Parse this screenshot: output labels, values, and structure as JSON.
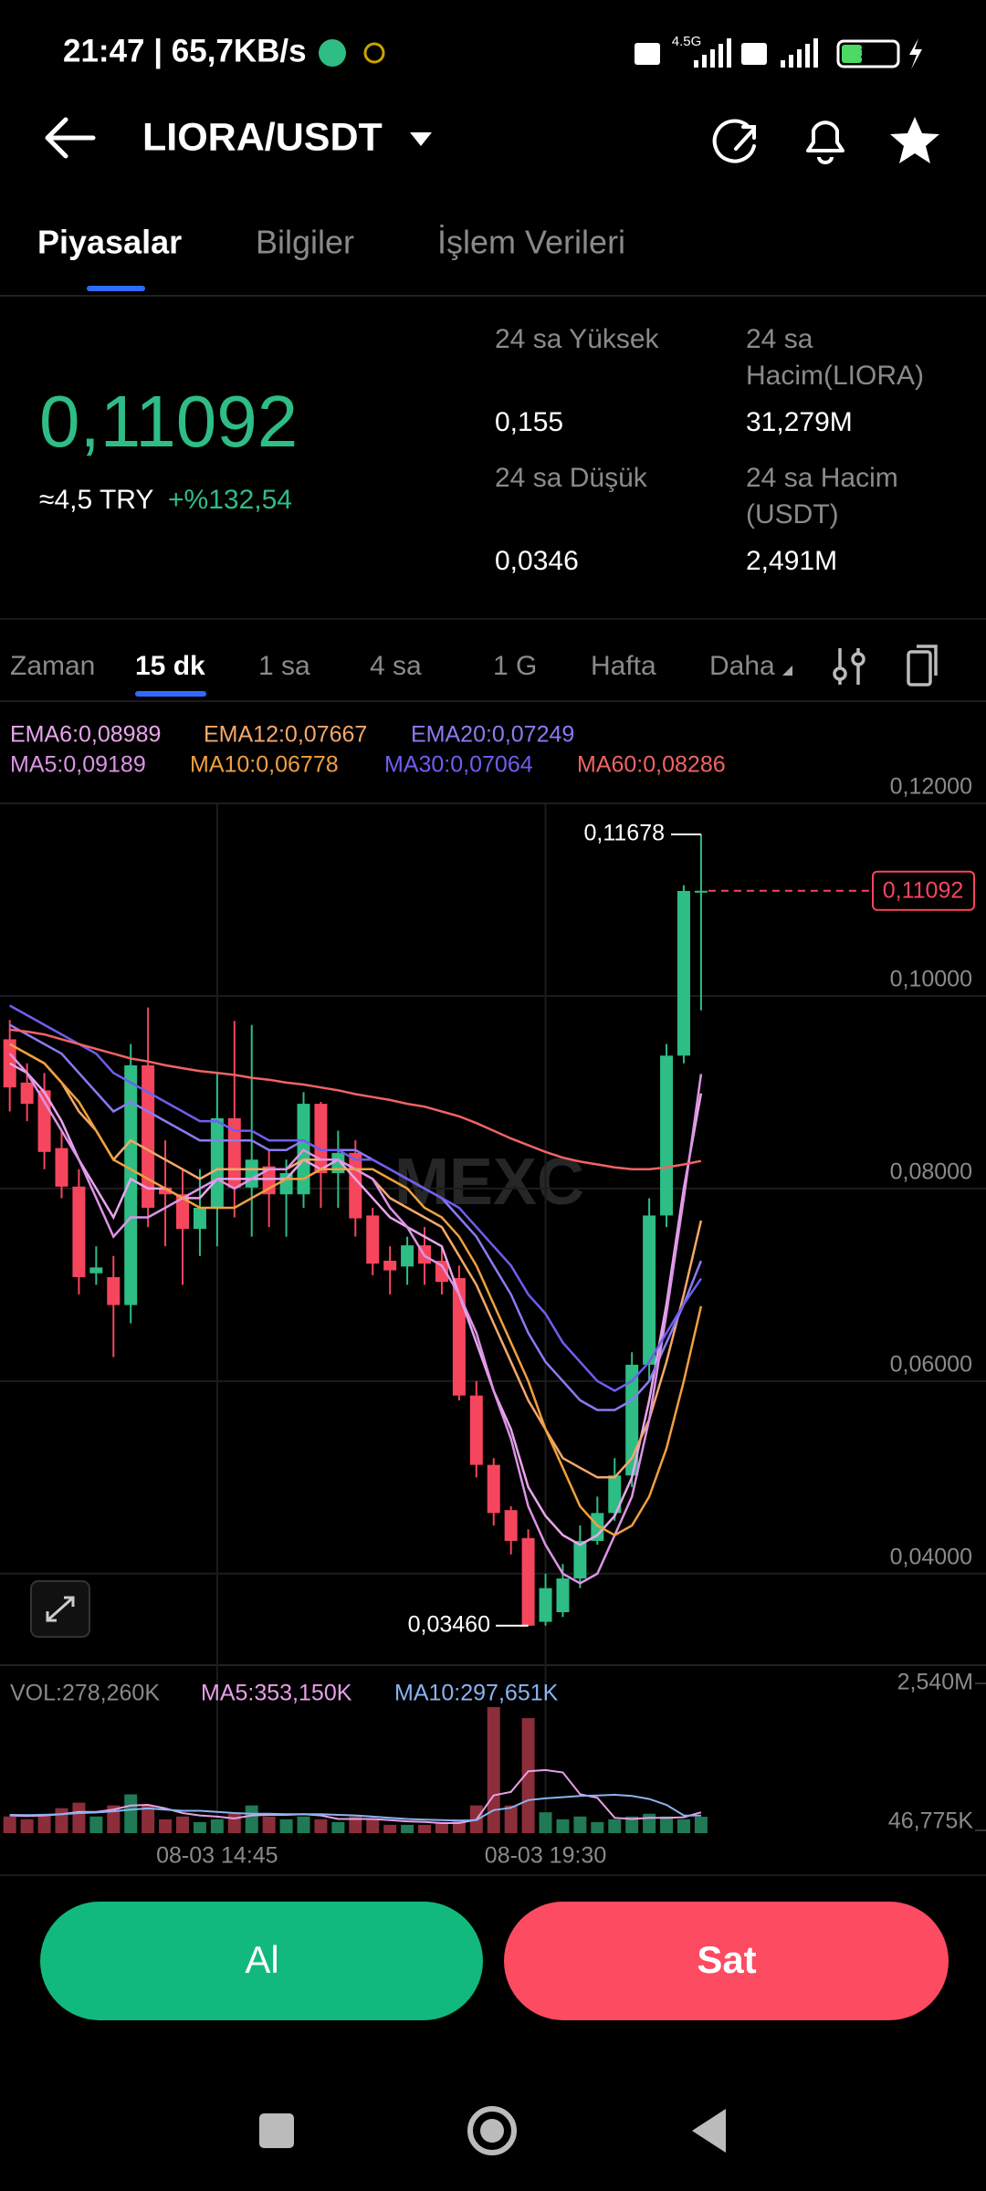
{
  "status_bar": {
    "time_speed": "21:47 | 65,7KB/s",
    "network": "4.5G",
    "battery": "38"
  },
  "header": {
    "title": "LIORA/USDT"
  },
  "tabs": [
    "Piyasalar",
    "Bilgiler",
    "İşlem Verileri"
  ],
  "ticker": {
    "price": "0,11092",
    "approx": "≈4,5 TRY",
    "change": "+%132,54",
    "stats": [
      {
        "label": [
          "24 sa Yüksek"
        ],
        "value": "0,155"
      },
      {
        "label": [
          "24 sa",
          "Hacim(LIORA)"
        ],
        "value": "31,279M"
      },
      {
        "label": [
          "24 sa Düşük"
        ],
        "value": "0,0346"
      },
      {
        "label": [
          "24 sa Hacim",
          "(USDT)"
        ],
        "value": "2,491M"
      }
    ]
  },
  "intervals": [
    "Zaman",
    "15 dk",
    "1 sa",
    "4 sa",
    "1 G",
    "Hafta",
    "Daha"
  ],
  "chart_data": [
    {
      "type": "candlestick",
      "watermark": "MEXC",
      "up_color": "#2ebd85",
      "down_color": "#f6465d",
      "categories": [
        null,
        null,
        null,
        null,
        null,
        null,
        null,
        null,
        null,
        null,
        null,
        null,
        "08-03 14:45",
        null,
        null,
        null,
        null,
        null,
        null,
        null,
        null,
        null,
        null,
        null,
        null,
        null,
        null,
        null,
        null,
        null,
        null,
        "08-03 19:30",
        null,
        null,
        null,
        null,
        null,
        null,
        null,
        null,
        null
      ],
      "open": [
        0.0955,
        0.091,
        0.0902,
        0.0842,
        0.0802,
        0.0712,
        0.0708,
        0.0679,
        0.0928,
        0.0801,
        0.0794,
        0.0758,
        0.078,
        0.0873,
        0.0801,
        0.0823,
        0.0794,
        0.0794,
        0.0888,
        0.0816,
        0.0837,
        0.0772,
        0.0725,
        0.0719,
        0.0741,
        0.0725,
        0.0707,
        0.0585,
        0.0513,
        0.0466,
        0.0437,
        0.035,
        0.036,
        0.0395,
        0.0434,
        0.0463,
        0.0502,
        0.0617,
        0.0772,
        0.0938,
        0.1109
      ],
      "high": [
        0.0975,
        0.093,
        0.092,
        0.086,
        0.082,
        0.074,
        0.073,
        0.095,
        0.0988,
        0.085,
        0.082,
        0.082,
        0.092,
        0.0974,
        0.097,
        0.084,
        0.083,
        0.09,
        0.089,
        0.086,
        0.085,
        0.078,
        0.074,
        0.075,
        0.076,
        0.074,
        0.072,
        0.06,
        0.052,
        0.047,
        0.0446,
        0.04,
        0.041,
        0.045,
        0.048,
        0.052,
        0.063,
        0.079,
        0.095,
        0.1115,
        0.11678
      ],
      "low": [
        0.088,
        0.087,
        0.082,
        0.079,
        0.069,
        0.07,
        0.0625,
        0.066,
        0.076,
        0.074,
        0.07,
        0.073,
        0.074,
        0.077,
        0.075,
        0.076,
        0.075,
        0.078,
        0.078,
        0.078,
        0.075,
        0.071,
        0.069,
        0.07,
        0.07,
        0.069,
        0.058,
        0.05,
        0.045,
        0.042,
        0.0346,
        0.0346,
        0.0355,
        0.0385,
        0.043,
        0.0455,
        0.049,
        0.06,
        0.076,
        0.093,
        0.0985
      ],
      "close": [
        0.0905,
        0.0888,
        0.0838,
        0.0802,
        0.0708,
        0.0718,
        0.0679,
        0.0928,
        0.078,
        0.0794,
        0.0758,
        0.078,
        0.0873,
        0.0801,
        0.083,
        0.0794,
        0.0816,
        0.0888,
        0.0816,
        0.0837,
        0.0769,
        0.0722,
        0.0715,
        0.0741,
        0.0722,
        0.0703,
        0.0585,
        0.0513,
        0.0463,
        0.0434,
        0.0346,
        0.0385,
        0.0395,
        0.0434,
        0.0463,
        0.0502,
        0.0617,
        0.0772,
        0.0938,
        0.1109,
        0.11092
      ],
      "series": [
        {
          "name": "EMA6:0,08989",
          "color": "#e8a6ec",
          "values": [
            0.093,
            0.092,
            0.09,
            0.087,
            0.083,
            0.08,
            0.077,
            0.081,
            0.08,
            0.08,
            0.079,
            0.079,
            0.081,
            0.081,
            0.081,
            0.081,
            0.081,
            0.083,
            0.082,
            0.083,
            0.081,
            0.079,
            0.077,
            0.076,
            0.075,
            0.074,
            0.069,
            0.064,
            0.059,
            0.055,
            0.049,
            0.046,
            0.044,
            0.043,
            0.044,
            0.046,
            0.05,
            0.058,
            0.068,
            0.08,
            0.08989
          ]
        },
        {
          "name": "EMA12:0,07667",
          "color": "#f5a86a",
          "values": [
            0.095,
            0.094,
            0.093,
            0.091,
            0.088,
            0.086,
            0.083,
            0.085,
            0.084,
            0.083,
            0.082,
            0.081,
            0.082,
            0.082,
            0.082,
            0.082,
            0.082,
            0.083,
            0.083,
            0.083,
            0.082,
            0.081,
            0.079,
            0.078,
            0.077,
            0.076,
            0.073,
            0.07,
            0.066,
            0.062,
            0.058,
            0.055,
            0.052,
            0.051,
            0.05,
            0.05,
            0.052,
            0.056,
            0.062,
            0.069,
            0.07667
          ]
        },
        {
          "name": "EMA20:0,07249",
          "color": "#8a7cf2",
          "values": [
            0.097,
            0.096,
            0.095,
            0.094,
            0.092,
            0.09,
            0.088,
            0.089,
            0.088,
            0.087,
            0.086,
            0.085,
            0.085,
            0.085,
            0.085,
            0.084,
            0.084,
            0.085,
            0.084,
            0.084,
            0.084,
            0.083,
            0.082,
            0.081,
            0.08,
            0.079,
            0.077,
            0.075,
            0.072,
            0.069,
            0.065,
            0.062,
            0.06,
            0.058,
            0.057,
            0.057,
            0.058,
            0.06,
            0.064,
            0.068,
            0.07249
          ]
        },
        {
          "name": "MA5:0,09189",
          "color": "#dc94e6",
          "values": [
            0.094,
            0.092,
            0.089,
            0.086,
            0.083,
            0.079,
            0.075,
            0.077,
            0.077,
            0.078,
            0.079,
            0.08,
            0.081,
            0.08,
            0.081,
            0.082,
            0.082,
            0.084,
            0.083,
            0.083,
            0.082,
            0.081,
            0.078,
            0.076,
            0.073,
            0.072,
            0.069,
            0.065,
            0.059,
            0.054,
            0.047,
            0.043,
            0.04,
            0.039,
            0.04,
            0.044,
            0.048,
            0.056,
            0.067,
            0.079,
            0.09189
          ]
        },
        {
          "name": "MA10:0,06778",
          "color": "#f0a040",
          "values": [
            0.095,
            0.094,
            0.093,
            0.091,
            0.089,
            0.086,
            0.083,
            0.082,
            0.081,
            0.08,
            0.079,
            0.078,
            0.078,
            0.078,
            0.079,
            0.08,
            0.081,
            0.081,
            0.082,
            0.082,
            0.082,
            0.082,
            0.081,
            0.08,
            0.078,
            0.077,
            0.075,
            0.072,
            0.068,
            0.064,
            0.06,
            0.055,
            0.051,
            0.047,
            0.045,
            0.044,
            0.045,
            0.048,
            0.053,
            0.06,
            0.06778
          ]
        },
        {
          "name": "MA30:0,07064",
          "color": "#6e5ef0",
          "values": [
            0.099,
            0.098,
            0.097,
            0.096,
            0.095,
            0.094,
            0.092,
            0.091,
            0.09,
            0.089,
            0.088,
            0.087,
            0.087,
            0.086,
            0.086,
            0.085,
            0.085,
            0.085,
            0.084,
            0.084,
            0.083,
            0.083,
            0.082,
            0.081,
            0.08,
            0.079,
            0.078,
            0.076,
            0.074,
            0.072,
            0.069,
            0.067,
            0.064,
            0.062,
            0.06,
            0.059,
            0.06,
            0.062,
            0.065,
            0.068,
            0.07064
          ]
        },
        {
          "name": "MA60:0,08286",
          "color": "#f06464",
          "values": [
            0.0965,
            0.0963,
            0.096,
            0.0955,
            0.095,
            0.0945,
            0.094,
            0.0935,
            0.0932,
            0.0928,
            0.0925,
            0.0922,
            0.092,
            0.0918,
            0.0915,
            0.0913,
            0.091,
            0.0908,
            0.0905,
            0.0902,
            0.0898,
            0.0895,
            0.0892,
            0.0888,
            0.0885,
            0.088,
            0.0875,
            0.0868,
            0.086,
            0.0852,
            0.0845,
            0.0838,
            0.0832,
            0.0828,
            0.0825,
            0.0822,
            0.082,
            0.082,
            0.0822,
            0.0825,
            0.08286
          ]
        }
      ],
      "ylim": [
        0.0305,
        0.12
      ],
      "yticks": [
        {
          "value": 0.12,
          "label": "0,12000"
        },
        {
          "value": 0.1,
          "label": "0,10000"
        },
        {
          "value": 0.08,
          "label": "0,08000"
        },
        {
          "value": 0.06,
          "label": "0,06000"
        },
        {
          "value": 0.04,
          "label": "0,04000"
        }
      ],
      "annotations": {
        "high": {
          "value": 0.11678,
          "label": "0,11678"
        },
        "low": {
          "value": 0.0346,
          "label": "0,03460"
        },
        "last": {
          "value": 0.11092,
          "label": "0,11092"
        }
      }
    },
    {
      "type": "bar",
      "name": "VOL:278,260K",
      "up_color": "#1f7a55",
      "down_color": "#8b2e3a",
      "values": [
        282,
        235,
        329,
        423,
        517,
        282,
        470,
        658,
        470,
        235,
        282,
        188,
        235,
        329,
        470,
        282,
        235,
        282,
        235,
        188,
        282,
        235,
        141,
        141,
        141,
        188,
        235,
        470,
        2139,
        470,
        1951,
        353,
        235,
        282,
        188,
        235,
        282,
        329,
        282,
        235,
        278.26
      ],
      "series": [
        {
          "name": "MA5:353,150K",
          "color": "#e6a0e6",
          "values": [
            300,
            290,
            300,
            320,
            360,
            360,
            400,
            470,
            480,
            420,
            340,
            300,
            280,
            250,
            300,
            310,
            310,
            320,
            300,
            240,
            240,
            240,
            220,
            200,
            190,
            170,
            170,
            230,
            640,
            700,
            1050,
            1070,
            1030,
            660,
            600,
            260,
            240,
            260,
            260,
            270,
            353.15
          ]
        },
        {
          "name": "MA10:297,651K",
          "color": "#8ab4f0",
          "values": [
            310,
            305,
            310,
            320,
            340,
            350,
            370,
            400,
            420,
            400,
            380,
            380,
            360,
            340,
            330,
            330,
            320,
            320,
            320,
            310,
            300,
            280,
            260,
            240,
            230,
            220,
            210,
            220,
            390,
            430,
            560,
            590,
            610,
            630,
            640,
            650,
            630,
            580,
            480,
            300,
            297.651
          ]
        }
      ],
      "ylim": [
        0,
        2726
      ],
      "yticks": [
        {
          "value": 2540,
          "label": "2,540M"
        },
        {
          "value": 46.775,
          "label": "46,775K"
        }
      ]
    }
  ],
  "buttons": {
    "buy": "Al",
    "sell": "Sat"
  }
}
